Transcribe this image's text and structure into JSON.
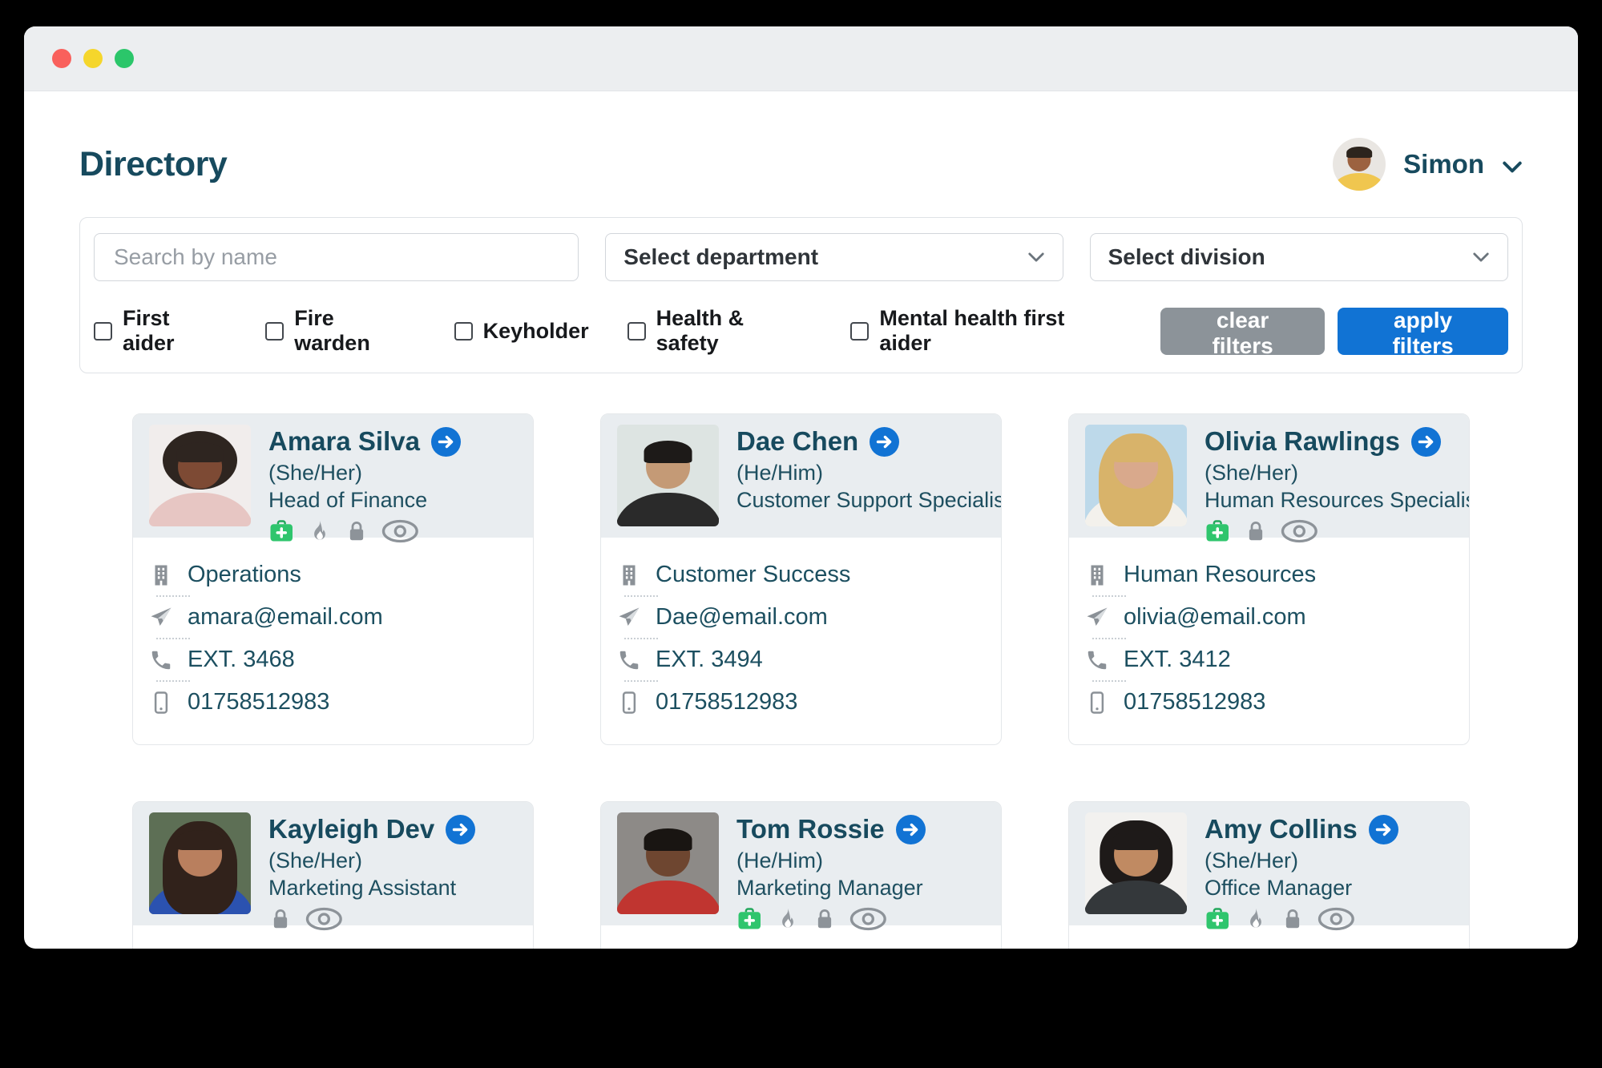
{
  "colors": {
    "accent_blue": "#1173d4",
    "teal_text": "#174a5e",
    "button_gray": "#8c9399",
    "badge_green": "#2fc56d",
    "traffic_red": "#f9605c",
    "traffic_yellow": "#f5d62c",
    "traffic_green": "#2bc66a"
  },
  "header": {
    "title": "Directory",
    "user": {
      "name": "Simon",
      "photo": {
        "bg": "#e9e6e2",
        "skin": "#9c6240",
        "hair": "#2c241d",
        "shirt": "#f0c64f",
        "hair_style": "short"
      }
    }
  },
  "filters": {
    "search_placeholder": "Search by name",
    "department_placeholder": "Select department",
    "division_placeholder": "Select division",
    "checkboxes": [
      {
        "label": "First aider",
        "checked": false
      },
      {
        "label": "Fire warden",
        "checked": false
      },
      {
        "label": "Keyholder",
        "checked": false
      },
      {
        "label": "Health & safety",
        "checked": false
      },
      {
        "label": "Mental health first aider",
        "checked": false
      }
    ],
    "clear_button": "clear filters",
    "apply_button": "apply filters"
  },
  "people": [
    {
      "name": "Amara Silva",
      "pronouns": "(She/Her)",
      "role": "Head of Finance",
      "badges": [
        "first-aid-kit",
        "flame",
        "lock",
        "eye"
      ],
      "contacts": [
        {
          "icon": "building",
          "value": "Operations"
        },
        {
          "icon": "send",
          "value": "amara@email.com"
        },
        {
          "icon": "phone",
          "value": "EXT. 3468"
        },
        {
          "icon": "mobile",
          "value": "01758512983"
        }
      ],
      "photo": {
        "bg": "#f1edec",
        "skin": "#7d4a34",
        "hair": "#2e2520",
        "shirt": "#e7c6c3",
        "hair_style": "afro"
      }
    },
    {
      "name": "Dae Chen",
      "pronouns": "(He/Him)",
      "role": "Customer Support Specialist",
      "badges": [],
      "contacts": [
        {
          "icon": "building",
          "value": "Customer Success"
        },
        {
          "icon": "send",
          "value": "Dae@email.com"
        },
        {
          "icon": "phone",
          "value": "EXT. 3494"
        },
        {
          "icon": "mobile",
          "value": "01758512983"
        }
      ],
      "photo": {
        "bg": "#dde4e2",
        "skin": "#c49a76",
        "hair": "#1d1a18",
        "shirt": "#2a2a2a",
        "hair_style": "short"
      }
    },
    {
      "name": "Olivia Rawlings",
      "pronouns": "(She/Her)",
      "role": "Human Resources Specialist",
      "badges": [
        "first-aid-kit",
        "lock",
        "eye"
      ],
      "contacts": [
        {
          "icon": "building",
          "value": "Human Resources"
        },
        {
          "icon": "send",
          "value": "olivia@email.com"
        },
        {
          "icon": "phone",
          "value": "EXT. 3412"
        },
        {
          "icon": "mobile",
          "value": "01758512983"
        }
      ],
      "photo": {
        "bg": "#bdd9ea",
        "skin": "#d9a98c",
        "hair": "#d8b36a",
        "shirt": "#f3f1ec",
        "hair_style": "long"
      }
    },
    {
      "name": "Kayleigh Dev",
      "pronouns": "(She/Her)",
      "role": "Marketing Assistant",
      "badges": [
        "lock",
        "eye"
      ],
      "contacts": [],
      "photo": {
        "bg": "#5d6f55",
        "skin": "#b97f5e",
        "hair": "#31221b",
        "shirt": "#2b52b0",
        "hair_style": "long"
      }
    },
    {
      "name": "Tom Rossie",
      "pronouns": "(He/Him)",
      "role": "Marketing Manager",
      "badges": [
        "first-aid-kit",
        "flame",
        "lock",
        "eye"
      ],
      "contacts": [],
      "photo": {
        "bg": "#8d8a87",
        "skin": "#6e4630",
        "hair": "#191512",
        "shirt": "#c03530",
        "hair_style": "short"
      }
    },
    {
      "name": "Amy Collins",
      "pronouns": "(She/Her)",
      "role": "Office Manager",
      "badges": [
        "first-aid-kit",
        "flame",
        "lock",
        "eye"
      ],
      "contacts": [],
      "photo": {
        "bg": "#f2f1ef",
        "skin": "#c08a62",
        "hair": "#1e1a19",
        "shirt": "#34383b",
        "hair_style": "bob"
      }
    }
  ]
}
